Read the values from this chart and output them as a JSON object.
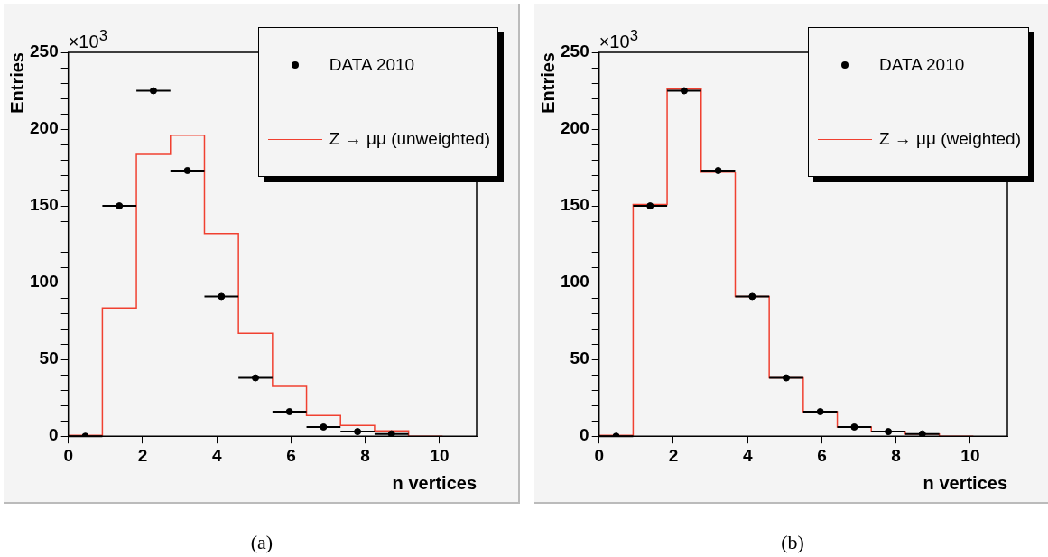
{
  "chart_data": [
    {
      "type": "histogram",
      "xlabel": "n vertices",
      "ylabel": "Entries",
      "legend": "top right",
      "xlim": [
        0,
        11
      ],
      "ylim": [
        0,
        250
      ],
      "xticks": [
        0,
        2,
        4,
        6,
        8,
        10
      ],
      "yticks": [
        0,
        {
          "value": 10,
          "label": null
        },
        {
          "value": 20,
          "label": null
        },
        {
          "value": 30,
          "label": null
        },
        {
          "value": 40,
          "label": null
        },
        50,
        {
          "value": 60,
          "label": null
        },
        {
          "value": 70,
          "label": null
        },
        {
          "value": 80,
          "label": null
        },
        {
          "value": 90,
          "label": null
        },
        100,
        {
          "value": 110,
          "label": null
        },
        {
          "value": 120,
          "label": null
        },
        {
          "value": 130,
          "label": null
        },
        {
          "value": 140,
          "label": null
        },
        150,
        {
          "value": 160,
          "label": null
        },
        {
          "value": 170,
          "label": null
        },
        {
          "value": 180,
          "label": null
        },
        {
          "value": 190,
          "label": null
        },
        200,
        {
          "value": 210,
          "label": null
        },
        {
          "value": 220,
          "label": null
        },
        {
          "value": 230,
          "label": null
        },
        {
          "value": 240,
          "label": null
        },
        250
      ],
      "bins": [
        0,
        0.917,
        1.833,
        2.75,
        3.667,
        4.583,
        5.5,
        6.417,
        7.333,
        8.25,
        9.167,
        10.083
      ],
      "series": [
        {
          "name": "DATA 2010",
          "type": "scatter",
          "color": "#000000",
          "marker": "circle",
          "x": [
            0.458,
            1.375,
            2.292,
            3.208,
            4.125,
            5.042,
            5.958,
            6.875,
            7.792,
            8.708
          ],
          "values": [
            0,
            150,
            225,
            173,
            91,
            38,
            16,
            6,
            3,
            1.5
          ],
          "xerrors": [
            0.458,
            0.458,
            0.458,
            0.458,
            0.458,
            0.458,
            0.458,
            0.458,
            0.458,
            0.458
          ]
        },
        {
          "name": "Z → μμ (unweighted)",
          "type": "histogram",
          "color": "#f04030",
          "values": [
            0.5,
            83.5,
            183.5,
            196,
            132,
            67,
            32.5,
            13.5,
            7,
            3.5,
            0
          ]
        }
      ],
      "annotations": [
        "×10$^{3}$",
        "(a)"
      ]
    },
    {
      "type": "histogram",
      "xlabel": "n vertices",
      "ylabel": "Entries",
      "legend": "top right",
      "xlim": [
        0,
        11
      ],
      "ylim": [
        0,
        250
      ],
      "xticks": [
        0,
        2,
        4,
        6,
        8,
        10
      ],
      "yticks": [
        0,
        {
          "value": 10,
          "label": null
        },
        {
          "value": 20,
          "label": null
        },
        {
          "value": 30,
          "label": null
        },
        {
          "value": 40,
          "label": null
        },
        50,
        {
          "value": 60,
          "label": null
        },
        {
          "value": 70,
          "label": null
        },
        {
          "value": 80,
          "label": null
        },
        {
          "value": 90,
          "label": null
        },
        100,
        {
          "value": 110,
          "label": null
        },
        {
          "value": 120,
          "label": null
        },
        {
          "value": 130,
          "label": null
        },
        {
          "value": 140,
          "label": null
        },
        150,
        {
          "value": 160,
          "label": null
        },
        {
          "value": 170,
          "label": null
        },
        {
          "value": 180,
          "label": null
        },
        {
          "value": 190,
          "label": null
        },
        200,
        {
          "value": 210,
          "label": null
        },
        {
          "value": 220,
          "label": null
        },
        {
          "value": 230,
          "label": null
        },
        {
          "value": 240,
          "label": null
        },
        250
      ],
      "bins": [
        0,
        0.917,
        1.833,
        2.75,
        3.667,
        4.583,
        5.5,
        6.417,
        7.333,
        8.25,
        9.167,
        10.083
      ],
      "series": [
        {
          "name": "DATA 2010",
          "type": "scatter",
          "color": "#000000",
          "marker": "circle",
          "x": [
            0.458,
            1.375,
            2.292,
            3.208,
            4.125,
            5.042,
            5.958,
            6.875,
            7.792,
            8.708
          ],
          "values": [
            0,
            150,
            225,
            173,
            91,
            38,
            16,
            6,
            3,
            1.5
          ],
          "xerrors": [
            0.458,
            0.458,
            0.458,
            0.458,
            0.458,
            0.458,
            0.458,
            0.458,
            0.458,
            0.458
          ]
        },
        {
          "name": "Z → μμ (weighted)",
          "type": "histogram",
          "color": "#f04030",
          "values": [
            0.5,
            151,
            226,
            172,
            91,
            38,
            16,
            6,
            3,
            1.5,
            0
          ]
        }
      ],
      "annotations": [
        "×10$^{3}$",
        "(b)"
      ]
    }
  ]
}
